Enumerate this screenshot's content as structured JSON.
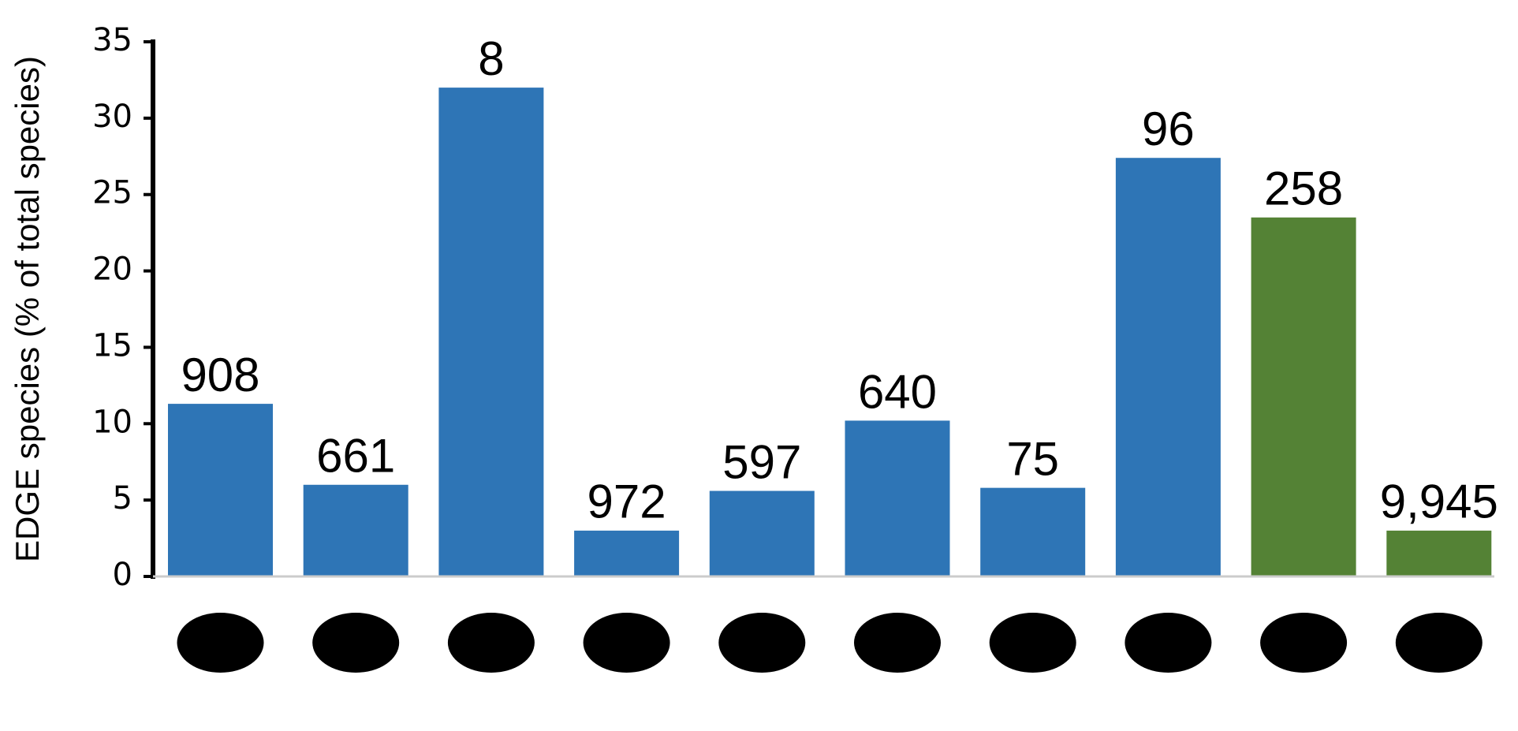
{
  "chart_data": {
    "type": "bar",
    "y_label": "EDGE species (% of total species)",
    "categories": [
      null,
      null,
      null,
      null,
      null,
      null,
      null,
      null,
      null,
      null
    ],
    "values": [
      11.3,
      6.0,
      32.0,
      3.0,
      5.6,
      10.2,
      5.8,
      27.4,
      23.5,
      3.0
    ],
    "annotations": [
      "908",
      "661",
      "8",
      "972",
      "597",
      "640",
      "75",
      "96",
      "258",
      "9,945"
    ],
    "colors": [
      "#2e75b6",
      "#2e75b6",
      "#2e75b6",
      "#2e75b6",
      "#2e75b6",
      "#2e75b6",
      "#2e75b6",
      "#2e75b6",
      "#548235",
      "#548235"
    ],
    "ylim": [
      0,
      35
    ],
    "yticks": [
      0,
      5,
      10,
      15,
      20,
      25,
      30,
      35
    ],
    "grid": false
  }
}
